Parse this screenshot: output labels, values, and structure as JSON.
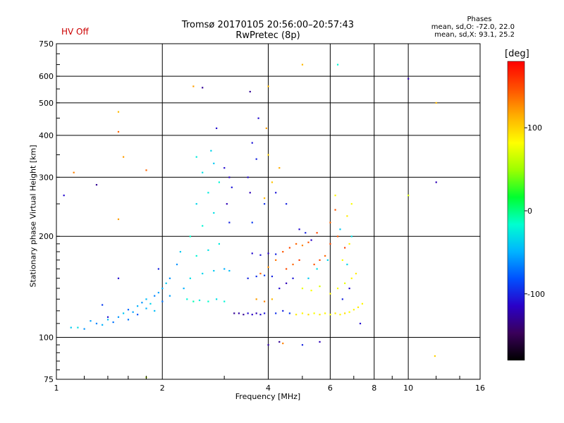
{
  "header": {
    "hv_status": "HV Off",
    "title_line1": "Tromsø 20170105 20:56:00–20:57:43",
    "title_line2": "RwPretec (8p)"
  },
  "phase_info": {
    "heading": "Phases",
    "line_o": "mean, sd,O: -72.0, 22.0",
    "line_x": "mean, sd,X: 93.1, 25.2"
  },
  "colorbar": {
    "label": "[deg]",
    "ticks": [
      {
        "label": "100",
        "value": 100
      },
      {
        "label": "0",
        "value": 0
      },
      {
        "label": "-100",
        "value": -100
      }
    ],
    "range": [
      -180,
      180
    ],
    "colors": [
      "#000000",
      "#3a005a",
      "#2a00c8",
      "#0050ff",
      "#00b4ff",
      "#00ffd0",
      "#00ff30",
      "#9cff00",
      "#ffff00",
      "#ffae00",
      "#ff5000",
      "#ff0000"
    ]
  },
  "chart_data": {
    "type": "scatter",
    "title": "Tromsø 20170105 20:56:00–20:57:43",
    "subtitle": "RwPretec (8p)",
    "xlabel": "Frequency [MHz]",
    "ylabel": "Stationary phase Virtual Height [km]",
    "x_scale": "log",
    "y_scale": "log",
    "xlim": [
      1,
      16
    ],
    "ylim": [
      75,
      750
    ],
    "grid": true,
    "x_ticks": [
      {
        "label": "1",
        "value": 1
      },
      {
        "label": "2",
        "value": 2
      },
      {
        "label": "4",
        "value": 4
      },
      {
        "label": "6",
        "value": 6
      },
      {
        "label": "8",
        "value": 8
      },
      {
        "label": "10",
        "value": 10
      },
      {
        "label": "16",
        "value": 16
      }
    ],
    "y_ticks": [
      {
        "label": "75",
        "value": 75
      },
      {
        "label": "100",
        "value": 100
      },
      {
        "label": "200",
        "value": 200
      },
      {
        "label": "300",
        "value": 300
      },
      {
        "label": "400",
        "value": 400
      },
      {
        "label": "500",
        "value": 500
      },
      {
        "label": "600",
        "value": 600
      },
      {
        "label": "750",
        "value": 750
      }
    ],
    "points": [
      {
        "x": 1.1,
        "y": 107,
        "phase": -40
      },
      {
        "x": 1.15,
        "y": 107,
        "phase": -30
      },
      {
        "x": 1.2,
        "y": 106,
        "phase": -60
      },
      {
        "x": 1.25,
        "y": 112,
        "phase": -55
      },
      {
        "x": 1.3,
        "y": 110,
        "phase": -65
      },
      {
        "x": 1.35,
        "y": 109,
        "phase": -50
      },
      {
        "x": 1.4,
        "y": 113,
        "phase": -45
      },
      {
        "x": 1.45,
        "y": 111,
        "phase": -70
      },
      {
        "x": 1.5,
        "y": 115,
        "phase": -60
      },
      {
        "x": 1.55,
        "y": 118,
        "phase": -40
      },
      {
        "x": 1.6,
        "y": 121,
        "phase": -75
      },
      {
        "x": 1.65,
        "y": 119,
        "phase": -55
      },
      {
        "x": 1.7,
        "y": 124,
        "phase": -50
      },
      {
        "x": 1.75,
        "y": 127,
        "phase": -60
      },
      {
        "x": 1.8,
        "y": 130,
        "phase": -45
      },
      {
        "x": 1.85,
        "y": 126,
        "phase": -35
      },
      {
        "x": 1.9,
        "y": 133,
        "phase": -65
      },
      {
        "x": 1.95,
        "y": 136,
        "phase": -55
      },
      {
        "x": 2.0,
        "y": 140,
        "phase": -50
      },
      {
        "x": 2.05,
        "y": 145,
        "phase": -40
      },
      {
        "x": 2.1,
        "y": 150,
        "phase": -60
      },
      {
        "x": 1.6,
        "y": 113,
        "phase": -70
      },
      {
        "x": 1.7,
        "y": 117,
        "phase": -80
      },
      {
        "x": 1.8,
        "y": 122,
        "phase": -50
      },
      {
        "x": 1.9,
        "y": 120,
        "phase": -45
      },
      {
        "x": 2.0,
        "y": 128,
        "phase": -70
      },
      {
        "x": 2.1,
        "y": 133,
        "phase": -55
      },
      {
        "x": 1.95,
        "y": 160,
        "phase": -100
      },
      {
        "x": 1.5,
        "y": 150,
        "phase": -110
      },
      {
        "x": 1.35,
        "y": 125,
        "phase": -90
      },
      {
        "x": 2.35,
        "y": 130,
        "phase": -20
      },
      {
        "x": 2.45,
        "y": 128,
        "phase": -10
      },
      {
        "x": 2.55,
        "y": 129,
        "phase": -25
      },
      {
        "x": 2.7,
        "y": 128,
        "phase": -15
      },
      {
        "x": 2.85,
        "y": 130,
        "phase": -30
      },
      {
        "x": 3.0,
        "y": 128,
        "phase": -20
      },
      {
        "x": 2.4,
        "y": 150,
        "phase": -30
      },
      {
        "x": 2.6,
        "y": 155,
        "phase": -35
      },
      {
        "x": 2.8,
        "y": 158,
        "phase": -40
      },
      {
        "x": 3.0,
        "y": 160,
        "phase": -50
      },
      {
        "x": 3.1,
        "y": 158,
        "phase": -45
      },
      {
        "x": 2.5,
        "y": 175,
        "phase": -20
      },
      {
        "x": 2.7,
        "y": 182,
        "phase": -30
      },
      {
        "x": 2.9,
        "y": 190,
        "phase": -25
      },
      {
        "x": 2.4,
        "y": 200,
        "phase": -15
      },
      {
        "x": 2.6,
        "y": 215,
        "phase": -20
      },
      {
        "x": 2.8,
        "y": 235,
        "phase": -30
      },
      {
        "x": 2.5,
        "y": 250,
        "phase": -35
      },
      {
        "x": 2.7,
        "y": 270,
        "phase": -25
      },
      {
        "x": 2.9,
        "y": 290,
        "phase": -20
      },
      {
        "x": 2.6,
        "y": 310,
        "phase": -30
      },
      {
        "x": 2.8,
        "y": 330,
        "phase": -40
      },
      {
        "x": 2.5,
        "y": 345,
        "phase": -25
      },
      {
        "x": 2.75,
        "y": 360,
        "phase": -35
      },
      {
        "x": 3.0,
        "y": 320,
        "phase": -110
      },
      {
        "x": 3.1,
        "y": 300,
        "phase": -115
      },
      {
        "x": 3.15,
        "y": 280,
        "phase": -105
      },
      {
        "x": 3.05,
        "y": 250,
        "phase": -120
      },
      {
        "x": 3.1,
        "y": 220,
        "phase": -100
      },
      {
        "x": 3.2,
        "y": 118,
        "phase": -130
      },
      {
        "x": 3.3,
        "y": 118,
        "phase": -125
      },
      {
        "x": 3.4,
        "y": 117,
        "phase": -130
      },
      {
        "x": 3.5,
        "y": 118,
        "phase": -110
      },
      {
        "x": 3.6,
        "y": 117,
        "phase": -115
      },
      {
        "x": 3.7,
        "y": 118,
        "phase": -120
      },
      {
        "x": 3.8,
        "y": 117,
        "phase": -110
      },
      {
        "x": 3.9,
        "y": 118,
        "phase": -105
      },
      {
        "x": 3.5,
        "y": 150,
        "phase": -100
      },
      {
        "x": 3.7,
        "y": 152,
        "phase": -95
      },
      {
        "x": 3.9,
        "y": 153,
        "phase": -90
      },
      {
        "x": 4.1,
        "y": 152,
        "phase": -100
      },
      {
        "x": 3.6,
        "y": 178,
        "phase": -110
      },
      {
        "x": 3.8,
        "y": 176,
        "phase": -105
      },
      {
        "x": 4.0,
        "y": 178,
        "phase": -115
      },
      {
        "x": 4.2,
        "y": 177,
        "phase": -100
      },
      {
        "x": 3.6,
        "y": 220,
        "phase": -90
      },
      {
        "x": 3.9,
        "y": 250,
        "phase": -95
      },
      {
        "x": 3.5,
        "y": 300,
        "phase": -110
      },
      {
        "x": 3.7,
        "y": 340,
        "phase": -100
      },
      {
        "x": 3.6,
        "y": 380,
        "phase": -105
      },
      {
        "x": 3.75,
        "y": 450,
        "phase": -110
      },
      {
        "x": 3.55,
        "y": 270,
        "phase": -120
      },
      {
        "x": 3.7,
        "y": 130,
        "phase": 120
      },
      {
        "x": 3.9,
        "y": 128,
        "phase": 130
      },
      {
        "x": 4.1,
        "y": 130,
        "phase": 110
      },
      {
        "x": 3.8,
        "y": 155,
        "phase": 140
      },
      {
        "x": 4.0,
        "y": 162,
        "phase": 125
      },
      {
        "x": 4.2,
        "y": 170,
        "phase": 135
      },
      {
        "x": 4.4,
        "y": 180,
        "phase": 145
      },
      {
        "x": 4.6,
        "y": 185,
        "phase": 150
      },
      {
        "x": 4.8,
        "y": 190,
        "phase": 140
      },
      {
        "x": 5.0,
        "y": 188,
        "phase": 130
      },
      {
        "x": 5.2,
        "y": 192,
        "phase": 145
      },
      {
        "x": 4.5,
        "y": 160,
        "phase": 150
      },
      {
        "x": 4.7,
        "y": 165,
        "phase": 140
      },
      {
        "x": 4.9,
        "y": 170,
        "phase": 155
      },
      {
        "x": 3.9,
        "y": 260,
        "phase": 110
      },
      {
        "x": 4.1,
        "y": 290,
        "phase": 105
      },
      {
        "x": 4.0,
        "y": 350,
        "phase": 100
      },
      {
        "x": 4.3,
        "y": 320,
        "phase": 115
      },
      {
        "x": 3.95,
        "y": 420,
        "phase": 120
      },
      {
        "x": 4.0,
        "y": 560,
        "phase": 110
      },
      {
        "x": 4.2,
        "y": 118,
        "phase": -95
      },
      {
        "x": 4.4,
        "y": 120,
        "phase": -100
      },
      {
        "x": 4.6,
        "y": 118,
        "phase": -90
      },
      {
        "x": 4.3,
        "y": 140,
        "phase": -110
      },
      {
        "x": 4.5,
        "y": 145,
        "phase": -120
      },
      {
        "x": 4.7,
        "y": 150,
        "phase": -105
      },
      {
        "x": 4.9,
        "y": 210,
        "phase": -110
      },
      {
        "x": 5.1,
        "y": 205,
        "phase": -100
      },
      {
        "x": 5.3,
        "y": 195,
        "phase": -115
      },
      {
        "x": 4.5,
        "y": 250,
        "phase": -100
      },
      {
        "x": 4.2,
        "y": 270,
        "phase": -105
      },
      {
        "x": 4.8,
        "y": 117,
        "phase": 90
      },
      {
        "x": 5.0,
        "y": 118,
        "phase": 85
      },
      {
        "x": 5.2,
        "y": 117,
        "phase": 95
      },
      {
        "x": 5.4,
        "y": 118,
        "phase": 80
      },
      {
        "x": 5.6,
        "y": 117,
        "phase": 90
      },
      {
        "x": 5.8,
        "y": 118,
        "phase": 85
      },
      {
        "x": 6.0,
        "y": 117,
        "phase": 80
      },
      {
        "x": 6.2,
        "y": 118,
        "phase": 90
      },
      {
        "x": 6.4,
        "y": 117,
        "phase": 85
      },
      {
        "x": 6.6,
        "y": 118,
        "phase": 95
      },
      {
        "x": 6.8,
        "y": 119,
        "phase": 80
      },
      {
        "x": 7.0,
        "y": 121,
        "phase": 85
      },
      {
        "x": 7.2,
        "y": 123,
        "phase": 90
      },
      {
        "x": 7.4,
        "y": 126,
        "phase": 85
      },
      {
        "x": 5.0,
        "y": 140,
        "phase": 75
      },
      {
        "x": 5.3,
        "y": 138,
        "phase": 80
      },
      {
        "x": 5.6,
        "y": 142,
        "phase": 70
      },
      {
        "x": 6.0,
        "y": 135,
        "phase": 85
      },
      {
        "x": 6.3,
        "y": 140,
        "phase": 80
      },
      {
        "x": 6.6,
        "y": 145,
        "phase": 75
      },
      {
        "x": 6.9,
        "y": 150,
        "phase": 85
      },
      {
        "x": 7.1,
        "y": 155,
        "phase": 90
      },
      {
        "x": 6.5,
        "y": 170,
        "phase": 80
      },
      {
        "x": 6.8,
        "y": 190,
        "phase": 85
      },
      {
        "x": 6.7,
        "y": 230,
        "phase": 90
      },
      {
        "x": 6.9,
        "y": 250,
        "phase": 80
      },
      {
        "x": 6.2,
        "y": 265,
        "phase": 85
      },
      {
        "x": 5.4,
        "y": 165,
        "phase": 145
      },
      {
        "x": 5.6,
        "y": 170,
        "phase": 150
      },
      {
        "x": 5.8,
        "y": 175,
        "phase": 140
      },
      {
        "x": 6.0,
        "y": 190,
        "phase": 150
      },
      {
        "x": 6.3,
        "y": 200,
        "phase": 145
      },
      {
        "x": 6.6,
        "y": 185,
        "phase": 155
      },
      {
        "x": 5.5,
        "y": 205,
        "phase": 150
      },
      {
        "x": 6.0,
        "y": 220,
        "phase": 140
      },
      {
        "x": 6.2,
        "y": 240,
        "phase": 145
      },
      {
        "x": 5.2,
        "y": 150,
        "phase": -40
      },
      {
        "x": 5.5,
        "y": 160,
        "phase": -30
      },
      {
        "x": 5.9,
        "y": 170,
        "phase": -35
      },
      {
        "x": 6.4,
        "y": 210,
        "phase": -40
      },
      {
        "x": 6.9,
        "y": 200,
        "phase": -30
      },
      {
        "x": 6.7,
        "y": 165,
        "phase": -35
      },
      {
        "x": 6.8,
        "y": 140,
        "phase": -110
      },
      {
        "x": 6.5,
        "y": 130,
        "phase": -100
      },
      {
        "x": 7.3,
        "y": 110,
        "phase": -110
      },
      {
        "x": 4.3,
        "y": 97,
        "phase": -130
      },
      {
        "x": 4.0,
        "y": 95,
        "phase": -125
      },
      {
        "x": 4.4,
        "y": 96,
        "phase": 130
      },
      {
        "x": 5.0,
        "y": 95,
        "phase": -100
      },
      {
        "x": 5.6,
        "y": 97,
        "phase": -120
      },
      {
        "x": 1.05,
        "y": 265,
        "phase": -110
      },
      {
        "x": 1.12,
        "y": 310,
        "phase": 130
      },
      {
        "x": 1.3,
        "y": 285,
        "phase": -130
      },
      {
        "x": 1.5,
        "y": 225,
        "phase": 120
      },
      {
        "x": 1.5,
        "y": 410,
        "phase": 140
      },
      {
        "x": 1.5,
        "y": 470,
        "phase": 110
      },
      {
        "x": 1.55,
        "y": 345,
        "phase": 120
      },
      {
        "x": 1.8,
        "y": 315,
        "phase": 140
      },
      {
        "x": 2.45,
        "y": 560,
        "phase": 120
      },
      {
        "x": 2.6,
        "y": 555,
        "phase": -130
      },
      {
        "x": 2.85,
        "y": 420,
        "phase": -110
      },
      {
        "x": 3.55,
        "y": 540,
        "phase": -130
      },
      {
        "x": 5.0,
        "y": 650,
        "phase": 110
      },
      {
        "x": 6.3,
        "y": 650,
        "phase": -20
      },
      {
        "x": 10.0,
        "y": 590,
        "phase": -120
      },
      {
        "x": 10.0,
        "y": 265,
        "phase": 70
      },
      {
        "x": 12.0,
        "y": 290,
        "phase": -120
      },
      {
        "x": 12.0,
        "y": 500,
        "phase": 110
      },
      {
        "x": 11.9,
        "y": 88,
        "phase": 100
      },
      {
        "x": 1.8,
        "y": 76,
        "phase": 60
      },
      {
        "x": 1.4,
        "y": 115,
        "phase": -110
      },
      {
        "x": 2.2,
        "y": 165,
        "phase": -60
      },
      {
        "x": 2.25,
        "y": 180,
        "phase": -40
      },
      {
        "x": 2.3,
        "y": 140,
        "phase": -50
      }
    ]
  }
}
